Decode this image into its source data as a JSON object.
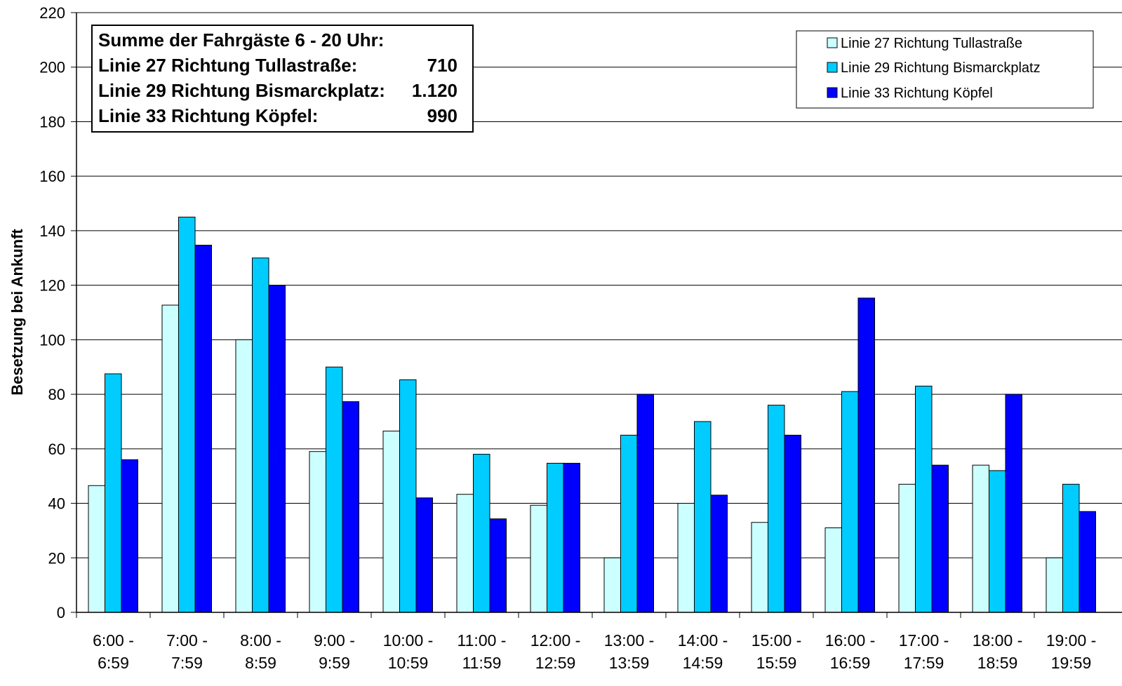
{
  "chart_data": {
    "type": "bar",
    "title": "",
    "xlabel": "",
    "ylabel": "Besetzung bei Ankunft",
    "ylim": [
      0,
      220
    ],
    "yticks": [
      0,
      20,
      40,
      60,
      80,
      100,
      120,
      140,
      160,
      180,
      200,
      220
    ],
    "grid": true,
    "legend_position": "top-right",
    "categories": [
      [
        "6:00 -",
        "6:59"
      ],
      [
        "7:00 -",
        "7:59"
      ],
      [
        "8:00 -",
        "8:59"
      ],
      [
        "9:00 -",
        "9:59"
      ],
      [
        "10:00 -",
        "10:59"
      ],
      [
        "11:00 -",
        "11:59"
      ],
      [
        "12:00 -",
        "12:59"
      ],
      [
        "13:00 -",
        "13:59"
      ],
      [
        "14:00 -",
        "14:59"
      ],
      [
        "15:00 -",
        "15:59"
      ],
      [
        "16:00 -",
        "16:59"
      ],
      [
        "17:00 -",
        "17:59"
      ],
      [
        "18:00 -",
        "18:59"
      ],
      [
        "19:00 -",
        "19:59"
      ]
    ],
    "series": [
      {
        "name": "Linie 27 Richtung Tullastraße",
        "color": "#ccffff",
        "values": [
          46.5,
          112.7,
          100,
          59,
          66.5,
          43.3,
          39.3,
          20,
          40,
          33,
          31,
          47,
          54,
          20
        ]
      },
      {
        "name": "Linie 29 Richtung Bismarckplatz",
        "color": "#00ccff",
        "values": [
          87.5,
          145,
          130,
          90,
          85.3,
          58,
          54.7,
          65,
          70,
          76,
          81,
          83,
          52,
          47
        ]
      },
      {
        "name": "Linie 33 Richtung Köpfel",
        "color": "#0000ff",
        "values": [
          56,
          134.7,
          120,
          77.3,
          42,
          34.3,
          54.7,
          80,
          43,
          65,
          115.3,
          54,
          80,
          37
        ]
      }
    ],
    "summary_box": {
      "heading": "Summe der Fahrgäste 6 - 20 Uhr:",
      "rows": [
        {
          "label": "Linie 27 Richtung Tullastraße:",
          "value": "710"
        },
        {
          "label": "Linie 29 Richtung Bismarckplatz:",
          "value": "1.120"
        },
        {
          "label": "Linie 33 Richtung Köpfel:",
          "value": "990"
        }
      ]
    }
  }
}
